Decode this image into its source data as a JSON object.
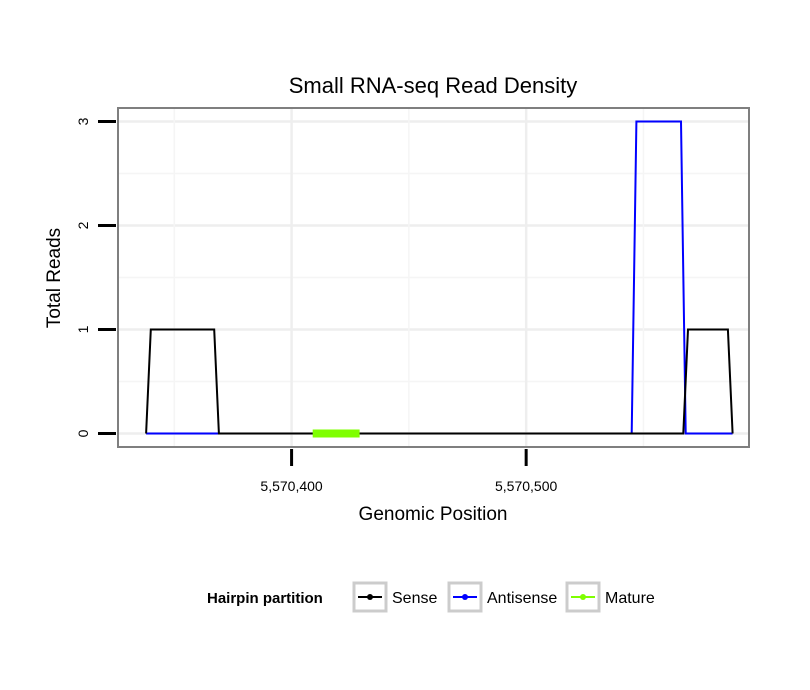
{
  "chart_data": {
    "type": "line",
    "title": "Small RNA-seq Read Density",
    "xlabel": "Genomic Position",
    "ylabel": "Total Reads",
    "xlim": [
      5570326,
      5570595
    ],
    "ylim": [
      -0.13,
      3.13
    ],
    "x_ticks": [
      5570400,
      5570500
    ],
    "x_tick_labels": [
      "5,570,400",
      "5,570,500"
    ],
    "y_ticks": [
      0,
      1,
      2,
      3
    ],
    "y_tick_labels": [
      "0",
      "1",
      "2",
      "3"
    ],
    "grid": true,
    "legend": {
      "title": "Hairpin partition",
      "position": "bottom",
      "entries": [
        {
          "name": "Sense",
          "color": "#000000"
        },
        {
          "name": "Antisense",
          "color": "#0000ff"
        },
        {
          "name": "Mature",
          "color": "#7fff00"
        }
      ]
    },
    "series": [
      {
        "name": "Sense",
        "color": "#000000",
        "x": [
          5570338,
          5570340,
          5570367,
          5570369,
          5570429,
          5570545,
          5570567,
          5570569,
          5570586,
          5570588
        ],
        "y": [
          0,
          1,
          1,
          0,
          0,
          0,
          0,
          1,
          1,
          0
        ]
      },
      {
        "name": "Antisense",
        "color": "#0000ff",
        "x": [
          5570338,
          5570367,
          5570545,
          5570547,
          5570566,
          5570568,
          5570588
        ],
        "y": [
          0,
          0,
          0,
          3,
          3,
          0,
          0
        ]
      },
      {
        "name": "Mature",
        "color": "#7fff00",
        "x": [
          5570409,
          5570429
        ],
        "y": [
          0,
          0
        ]
      }
    ]
  }
}
